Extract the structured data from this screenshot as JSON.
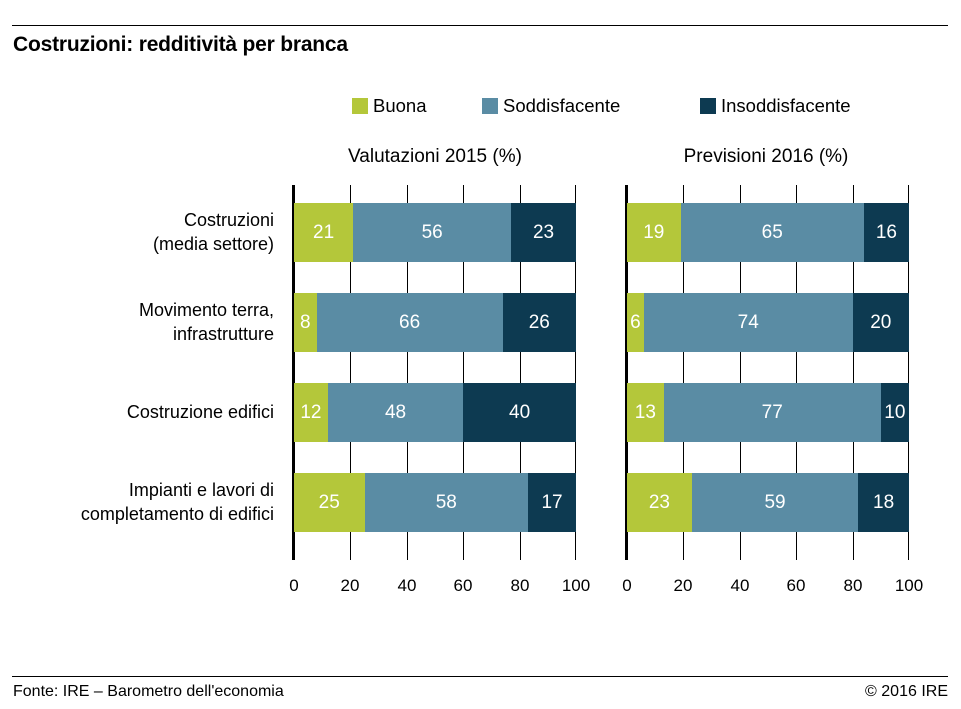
{
  "title": "Costruzioni: redditività per branca",
  "legend": [
    {
      "label": "Buona",
      "color": "#b4c73a"
    },
    {
      "label": "Soddisfacente",
      "color": "#5a8ca4"
    },
    {
      "label": "Insoddisfacente",
      "color": "#0d3a51"
    }
  ],
  "footer": {
    "source": "Fonte: IRE – Barometro dell'economia",
    "copyright": "© 2016 IRE"
  },
  "chart_data": {
    "type": "bar",
    "orientation": "horizontal",
    "stacked": true,
    "unit": "%",
    "grid": true,
    "legend_position": "top",
    "xlim": [
      0,
      100
    ],
    "xticks": [
      0,
      20,
      40,
      60,
      80,
      100
    ],
    "categories": [
      [
        "Costruzioni",
        "(media settore)"
      ],
      [
        "Movimento terra,",
        "infrastrutture"
      ],
      [
        "Costruzione edifici"
      ],
      [
        "Impianti e lavori di",
        "completamento di edifici"
      ]
    ],
    "charts": [
      {
        "title": "Valutazioni 2015 (%)",
        "series": [
          {
            "name": "Buona",
            "values": [
              21,
              8,
              12,
              25
            ]
          },
          {
            "name": "Soddisfacente",
            "values": [
              56,
              66,
              48,
              58
            ]
          },
          {
            "name": "Insoddisfacente",
            "values": [
              23,
              26,
              40,
              17
            ]
          }
        ]
      },
      {
        "title": "Previsioni 2016 (%)",
        "series": [
          {
            "name": "Buona",
            "values": [
              19,
              6,
              13,
              23
            ]
          },
          {
            "name": "Soddisfacente",
            "values": [
              65,
              74,
              77,
              59
            ]
          },
          {
            "name": "Insoddisfacente",
            "values": [
              16,
              20,
              10,
              18
            ]
          }
        ]
      }
    ]
  }
}
